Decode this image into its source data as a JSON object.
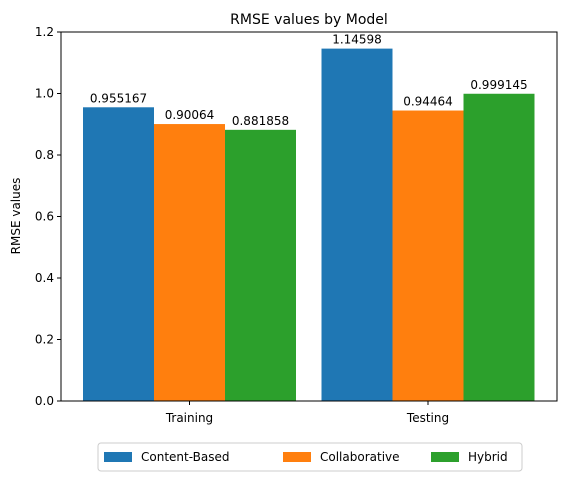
{
  "chart_data": {
    "type": "bar",
    "title": "RMSE values by Model",
    "xlabel": "",
    "ylabel": "RMSE values",
    "categories": [
      "Training",
      "Testing"
    ],
    "series": [
      {
        "name": "Content-Based",
        "color": "#1f77b4",
        "values": [
          0.955167,
          1.14598
        ],
        "labels": [
          "0.955167",
          "1.14598"
        ]
      },
      {
        "name": "Collaborative",
        "color": "#ff7f0e",
        "values": [
          0.90064,
          0.94464
        ],
        "labels": [
          "0.90064",
          "0.94464"
        ]
      },
      {
        "name": "Hybrid",
        "color": "#2ca02c",
        "values": [
          0.881858,
          0.999145
        ],
        "labels": [
          "0.881858",
          "0.999145"
        ]
      }
    ],
    "ylim": [
      0,
      1.2
    ],
    "yticks": [
      "0.0",
      "0.2",
      "0.4",
      "0.6",
      "0.8",
      "1.0",
      "1.2"
    ],
    "grid": false,
    "legend_position": "bottom-center"
  }
}
